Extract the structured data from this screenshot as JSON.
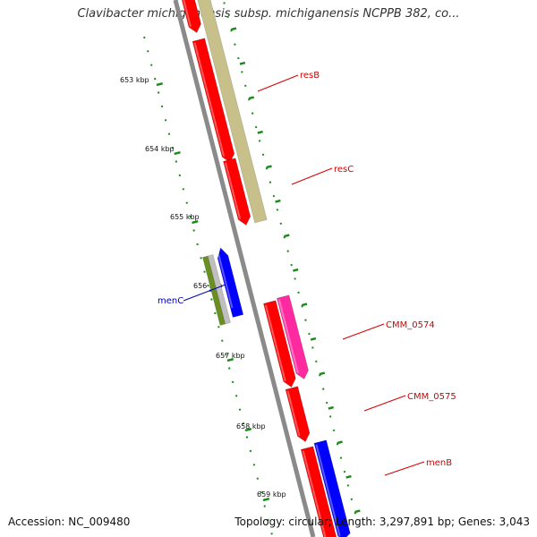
{
  "title": "Clavibacter michiganensis subsp. michiganensis NCPPB 382, co...",
  "footer": {
    "accession": "Accession: NC_009480",
    "summary": "Topology: circular; Length: 3,297,891 bp; Genes: 3,043"
  },
  "colors": {
    "backbone": "#8a8a8a",
    "tick": "#1a8a1a",
    "red": "#ff0000",
    "olive": "#c8c08a",
    "green": "#6b8e23",
    "gray": "#bfbfbf",
    "blue": "#0000ff",
    "pink": "#ff2aa0",
    "label_red": "#d40000",
    "label_blue": "#0000bb"
  },
  "ruler": {
    "unit": "kbp",
    "labels": [
      "653 kbp",
      "654 kbp",
      "655 kbp",
      "656 kbp",
      "657 kbp",
      "658 kbp",
      "659 kbp"
    ]
  },
  "genes": [
    {
      "id": "resB",
      "label": "resB",
      "label_color": "red"
    },
    {
      "id": "resC",
      "label": "resC",
      "label_color": "red"
    },
    {
      "id": "menC",
      "label": "menC",
      "label_color": "blue"
    },
    {
      "id": "CMM_0574",
      "label": "CMM_0574",
      "label_color": "red"
    },
    {
      "id": "CMM_0575",
      "label": "CMM_0575",
      "label_color": "red"
    },
    {
      "id": "menB",
      "label": "menB",
      "label_color": "red"
    }
  ]
}
